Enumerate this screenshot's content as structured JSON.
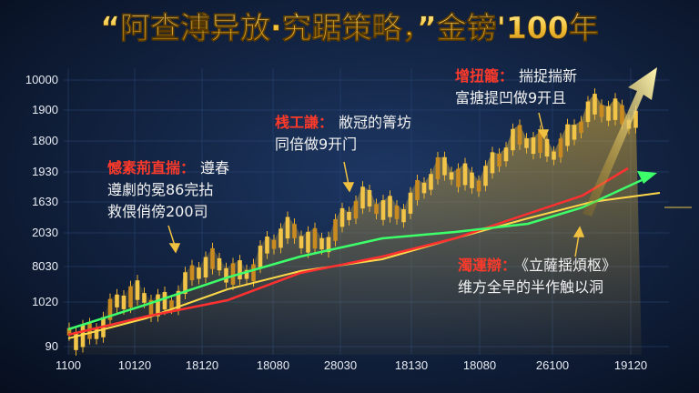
{
  "header": {
    "title": "“阿查溥异放·究踞策略，”金镑'100年"
  },
  "y_axis_labels": [
    "10000",
    "1900",
    "1800",
    "1930",
    "1630",
    "2030",
    "8030",
    "1020",
    "90"
  ],
  "x_axis_labels": [
    "1100",
    "10120",
    "18120",
    "18080",
    "28030",
    "18130",
    "18080",
    "26100",
    "19120"
  ],
  "annotations": [
    {
      "label": "憾素荊直揣：",
      "lines": [
        "遵春",
        "遵劇的冕86完拈",
        "救偎俏傍200司"
      ]
    },
    {
      "label": "桟工謙：",
      "lines": [
        "敝冠的箐坊",
        "同倍做9开门"
      ]
    },
    {
      "label": "增扭籠：",
      "lines": [
        "揣捉揣新",
        "富搪提凹做9开且"
      ]
    },
    {
      "label": "濁運辯：",
      "lines": [
        "《立薩揺煩枢》",
        "维方全早的半作触以洞"
      ]
    }
  ]
}
